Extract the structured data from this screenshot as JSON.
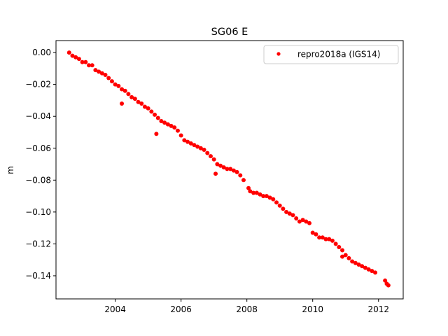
{
  "chart_data": {
    "type": "scatter",
    "title": "SG06 E",
    "xlabel": "",
    "ylabel": "m",
    "xlim": [
      2002.2,
      2012.75
    ],
    "ylim": [
      -0.1545,
      0.0075
    ],
    "x_ticks": [
      2004,
      2006,
      2008,
      2010,
      2012
    ],
    "x_tick_labels": [
      "2004",
      "2006",
      "2008",
      "2010",
      "2012"
    ],
    "y_ticks": [
      0.0,
      -0.02,
      -0.04,
      -0.06,
      -0.08,
      -0.1,
      -0.12,
      -0.14
    ],
    "y_tick_labels": [
      "0.00",
      "−0.02",
      "−0.04",
      "−0.06",
      "−0.08",
      "−0.10",
      "−0.12",
      "−0.14"
    ],
    "grid": false,
    "legend_position": "top-right",
    "series": [
      {
        "name": "repro2018a (IGS14)",
        "color": "#ff0000",
        "marker": "circle",
        "points": [
          [
            2002.6,
            0.0
          ],
          [
            2002.7,
            -0.002
          ],
          [
            2002.8,
            -0.003
          ],
          [
            2002.9,
            -0.004
          ],
          [
            2003.0,
            -0.006
          ],
          [
            2003.1,
            -0.006
          ],
          [
            2003.2,
            -0.008
          ],
          [
            2003.3,
            -0.008
          ],
          [
            2003.4,
            -0.011
          ],
          [
            2003.5,
            -0.012
          ],
          [
            2003.6,
            -0.013
          ],
          [
            2003.7,
            -0.014
          ],
          [
            2003.8,
            -0.016
          ],
          [
            2003.9,
            -0.018
          ],
          [
            2004.0,
            -0.02
          ],
          [
            2004.1,
            -0.021
          ],
          [
            2004.2,
            -0.023
          ],
          [
            2004.3,
            -0.024
          ],
          [
            2004.4,
            -0.026
          ],
          [
            2004.5,
            -0.028
          ],
          [
            2004.6,
            -0.029
          ],
          [
            2004.7,
            -0.031
          ],
          [
            2004.8,
            -0.032
          ],
          [
            2004.9,
            -0.034
          ],
          [
            2005.0,
            -0.035
          ],
          [
            2005.1,
            -0.037
          ],
          [
            2005.2,
            -0.039
          ],
          [
            2005.3,
            -0.041
          ],
          [
            2005.4,
            -0.043
          ],
          [
            2005.5,
            -0.044
          ],
          [
            2005.6,
            -0.045
          ],
          [
            2005.7,
            -0.046
          ],
          [
            2005.8,
            -0.047
          ],
          [
            2005.9,
            -0.049
          ],
          [
            2006.0,
            -0.052
          ],
          [
            2006.1,
            -0.055
          ],
          [
            2006.2,
            -0.056
          ],
          [
            2006.3,
            -0.057
          ],
          [
            2006.4,
            -0.058
          ],
          [
            2006.5,
            -0.059
          ],
          [
            2006.6,
            -0.06
          ],
          [
            2006.7,
            -0.061
          ],
          [
            2006.8,
            -0.063
          ],
          [
            2006.9,
            -0.065
          ],
          [
            2007.0,
            -0.067
          ],
          [
            2007.1,
            -0.07
          ],
          [
            2007.2,
            -0.071
          ],
          [
            2007.3,
            -0.072
          ],
          [
            2007.4,
            -0.073
          ],
          [
            2007.5,
            -0.073
          ],
          [
            2007.6,
            -0.074
          ],
          [
            2007.7,
            -0.075
          ],
          [
            2007.8,
            -0.077
          ],
          [
            2007.9,
            -0.08
          ],
          [
            2008.05,
            -0.085
          ],
          [
            2008.1,
            -0.087
          ],
          [
            2008.2,
            -0.088
          ],
          [
            2008.3,
            -0.088
          ],
          [
            2008.4,
            -0.089
          ],
          [
            2008.5,
            -0.09
          ],
          [
            2008.6,
            -0.09
          ],
          [
            2008.7,
            -0.091
          ],
          [
            2008.8,
            -0.092
          ],
          [
            2008.9,
            -0.094
          ],
          [
            2009.0,
            -0.096
          ],
          [
            2009.1,
            -0.098
          ],
          [
            2009.2,
            -0.1
          ],
          [
            2009.3,
            -0.101
          ],
          [
            2009.4,
            -0.102
          ],
          [
            2009.5,
            -0.104
          ],
          [
            2009.6,
            -0.106
          ],
          [
            2009.7,
            -0.105
          ],
          [
            2009.8,
            -0.106
          ],
          [
            2009.9,
            -0.107
          ],
          [
            2010.0,
            -0.113
          ],
          [
            2010.1,
            -0.114
          ],
          [
            2010.2,
            -0.116
          ],
          [
            2010.3,
            -0.116
          ],
          [
            2010.4,
            -0.117
          ],
          [
            2010.5,
            -0.117
          ],
          [
            2010.6,
            -0.118
          ],
          [
            2010.7,
            -0.12
          ],
          [
            2010.8,
            -0.122
          ],
          [
            2010.9,
            -0.124
          ],
          [
            2011.0,
            -0.127
          ],
          [
            2011.1,
            -0.129
          ],
          [
            2011.2,
            -0.131
          ],
          [
            2011.3,
            -0.132
          ],
          [
            2011.4,
            -0.133
          ],
          [
            2011.5,
            -0.134
          ],
          [
            2011.6,
            -0.135
          ],
          [
            2011.7,
            -0.136
          ],
          [
            2011.8,
            -0.137
          ],
          [
            2011.9,
            -0.138
          ],
          [
            2012.2,
            -0.143
          ],
          [
            2012.25,
            -0.145
          ],
          [
            2012.3,
            -0.146
          ],
          [
            2004.2,
            -0.032
          ],
          [
            2005.25,
            -0.051
          ],
          [
            2007.05,
            -0.076
          ],
          [
            2010.9,
            -0.128
          ]
        ]
      }
    ]
  }
}
